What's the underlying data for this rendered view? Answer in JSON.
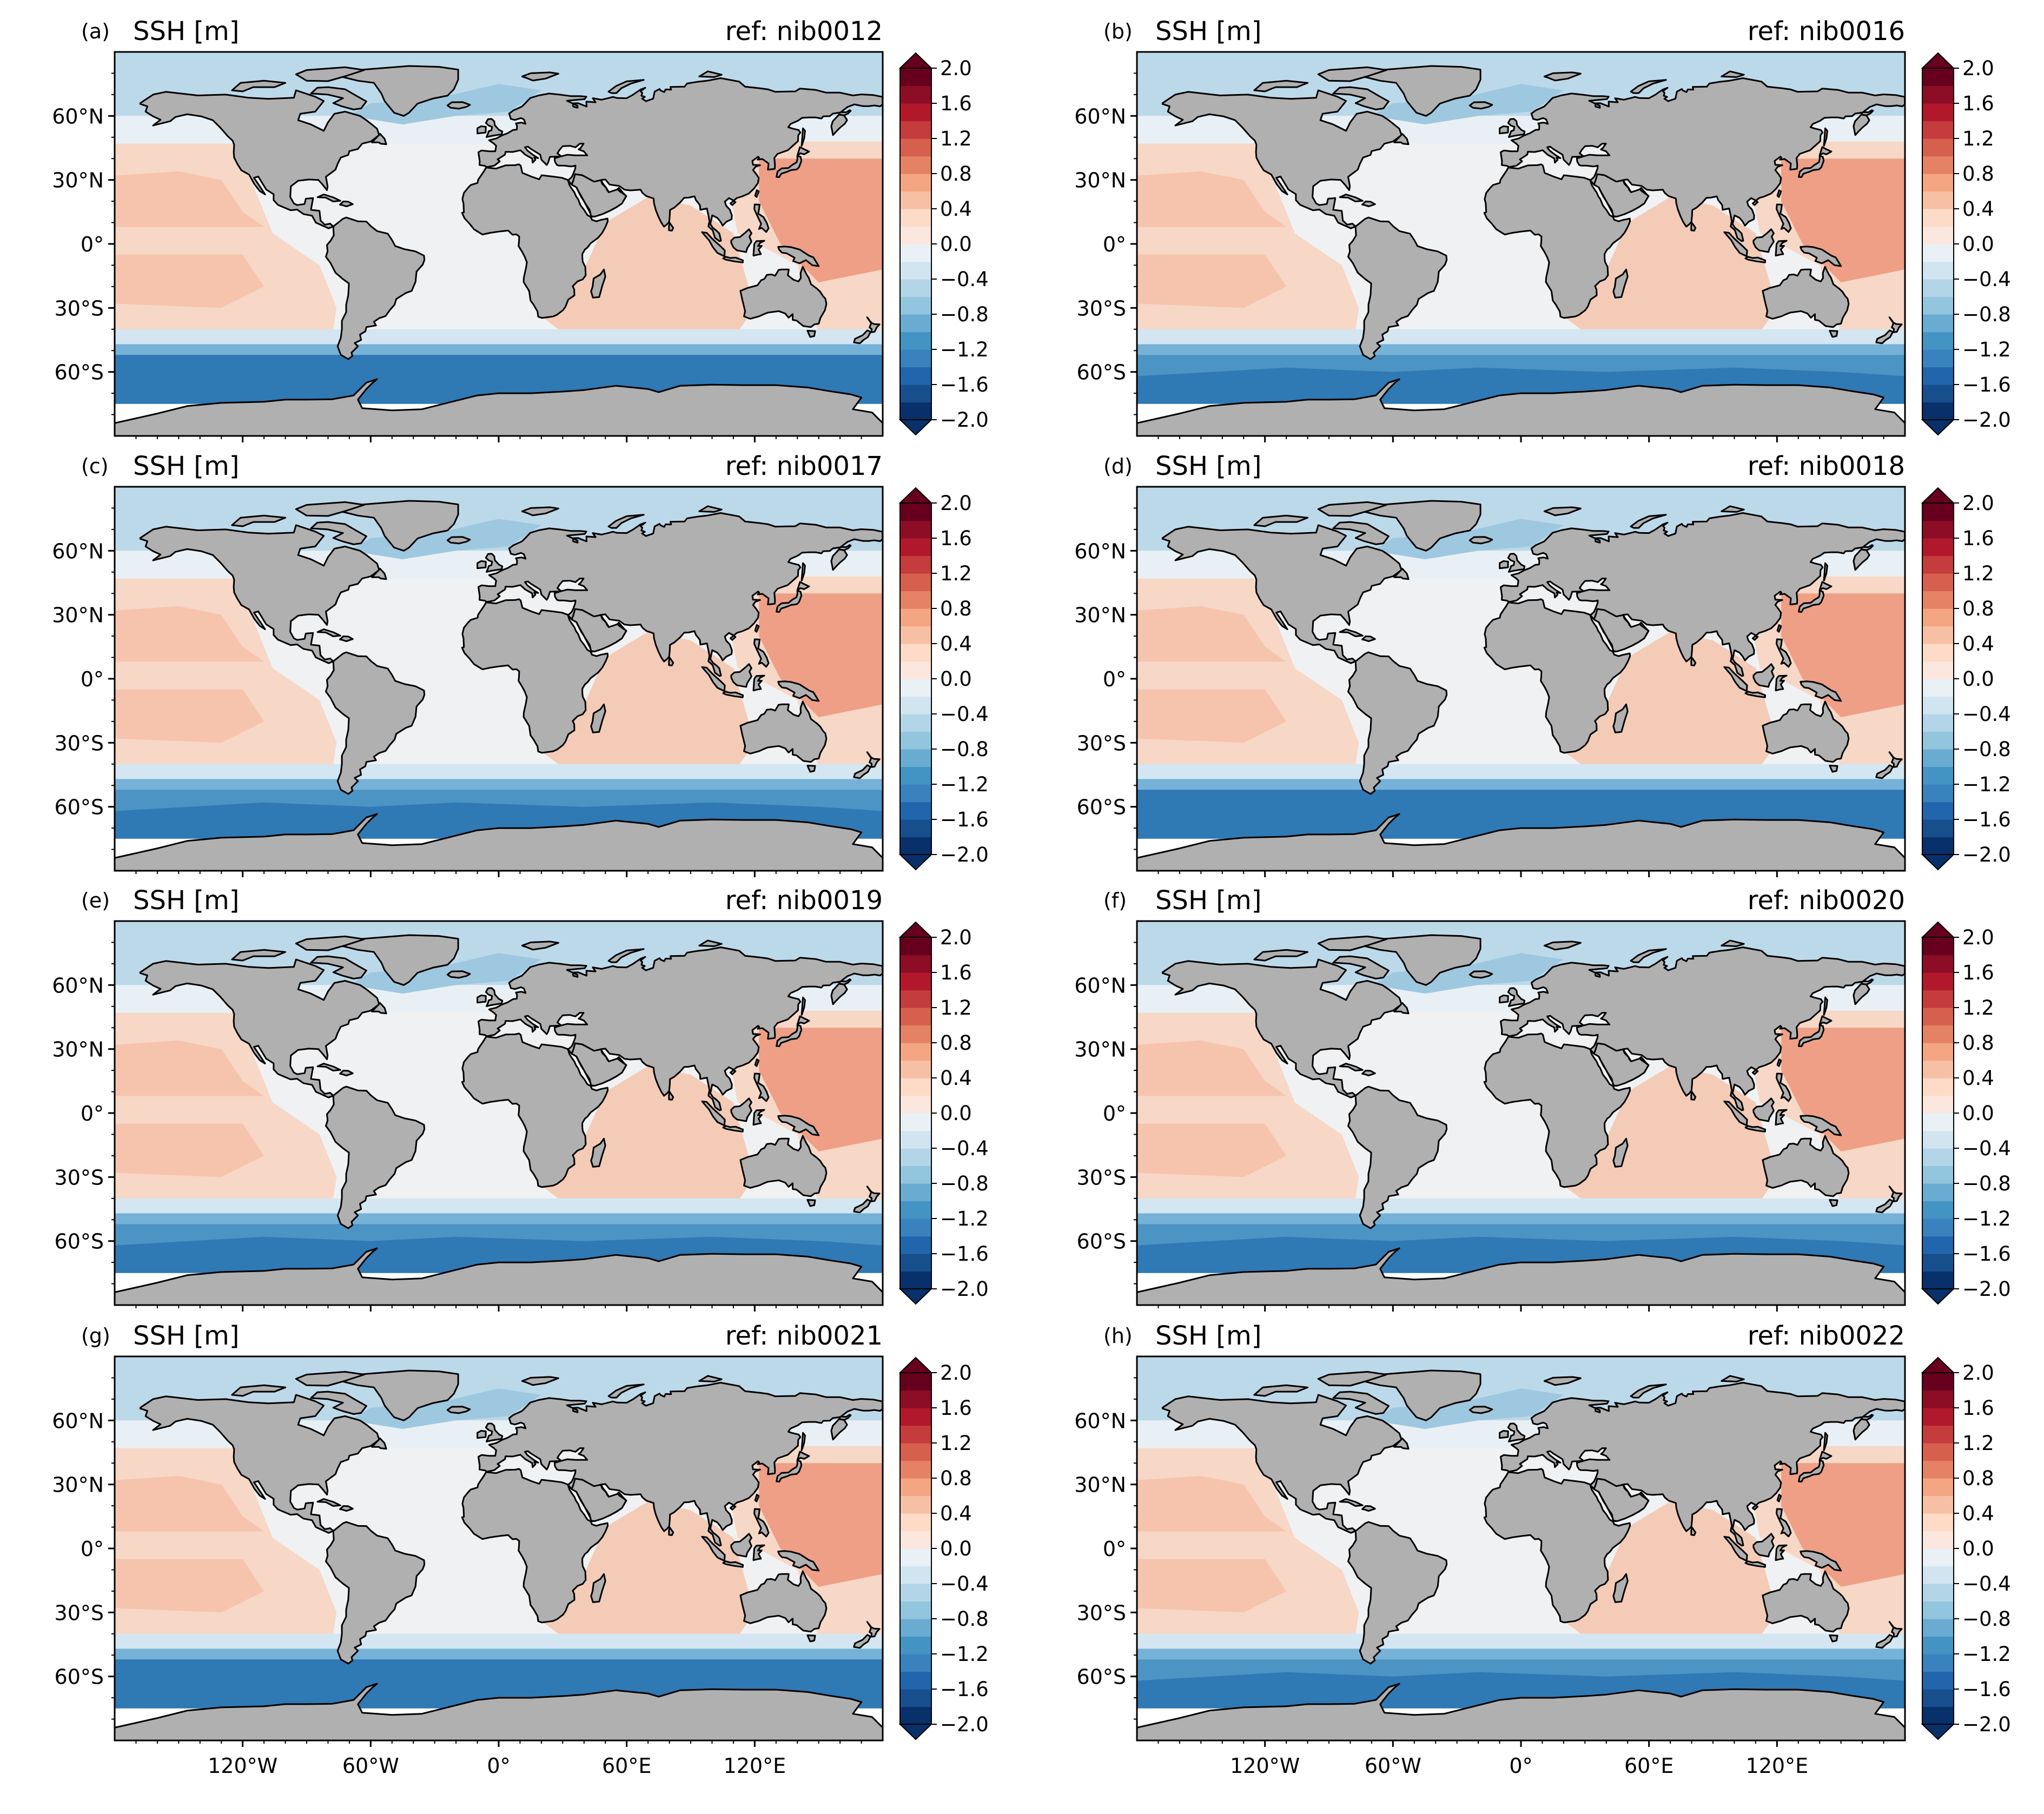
{
  "figure": {
    "panel_title": "SSH [m]",
    "lat_ticks": [
      "60°N",
      "30°N",
      "0°",
      "30°S",
      "60°S"
    ],
    "lon_ticks": [
      "120°W",
      "60°W",
      "0°",
      "60°E",
      "120°E"
    ],
    "colorbar_ticks": [
      "2.0",
      "1.6",
      "1.2",
      "0.8",
      "0.4",
      "0.0",
      "−0.4",
      "−0.8",
      "−1.2",
      "−1.6",
      "−2.0"
    ],
    "ocean_colors": {
      "arctic": "#bcd9ea",
      "subpolar": "#9ec8e0",
      "north_atlantic": "#e9f0f5",
      "atlantic_tropics": "#f0f1f3",
      "pacific_subtropics": "#f7d7c6",
      "pacific_band": "#f6c4ad",
      "west_pacific": "#ee9f85",
      "indian": "#f4cbb6",
      "southern_transition": "#d3e6f1",
      "acc_light": "#76b2d7",
      "acc": "#4b94c4",
      "acc_dark": "#2f79b5",
      "land": "#b0b0b0"
    },
    "colorbar_colors": [
      "#08306b",
      "#164f8c",
      "#2166ac",
      "#3a82bd",
      "#4393c3",
      "#6aabd2",
      "#92c5de",
      "#b3d5e8",
      "#d1e5f0",
      "#e9f1f6",
      "#fbe7dd",
      "#fddbc7",
      "#f7c0a4",
      "#f4a582",
      "#e58264",
      "#d6604d",
      "#c43c3c",
      "#b2182b",
      "#8c0d25",
      "#67001f"
    ]
  },
  "panels": [
    {
      "letter": "(a)",
      "ref": "ref: nib0012"
    },
    {
      "letter": "(b)",
      "ref": "ref: nib0016"
    },
    {
      "letter": "(c)",
      "ref": "ref: nib0017"
    },
    {
      "letter": "(d)",
      "ref": "ref: nib0018"
    },
    {
      "letter": "(e)",
      "ref": "ref: nib0019"
    },
    {
      "letter": "(f)",
      "ref": "ref: nib0020"
    },
    {
      "letter": "(g)",
      "ref": "ref: nib0021"
    },
    {
      "letter": "(h)",
      "ref": "ref: nib0022"
    }
  ],
  "chart_data": [
    {
      "type": "heatmap",
      "title": "SSH [m]",
      "subtitle": "ref: nib0012",
      "colorbar_range": [
        -2.0,
        2.0
      ],
      "colorbar_levels": 20,
      "colormap": "RdBu_r"
    },
    {
      "type": "heatmap",
      "title": "SSH [m]",
      "subtitle": "ref: nib0016",
      "colorbar_range": [
        -2.0,
        2.0
      ],
      "colorbar_levels": 20,
      "colormap": "RdBu_r"
    },
    {
      "type": "heatmap",
      "title": "SSH [m]",
      "subtitle": "ref: nib0017",
      "colorbar_range": [
        -2.0,
        2.0
      ],
      "colorbar_levels": 20,
      "colormap": "RdBu_r"
    },
    {
      "type": "heatmap",
      "title": "SSH [m]",
      "subtitle": "ref: nib0018",
      "colorbar_range": [
        -2.0,
        2.0
      ],
      "colorbar_levels": 20,
      "colormap": "RdBu_r"
    },
    {
      "type": "heatmap",
      "title": "SSH [m]",
      "subtitle": "ref: nib0019",
      "colorbar_range": [
        -2.0,
        2.0
      ],
      "colorbar_levels": 20,
      "colormap": "RdBu_r"
    },
    {
      "type": "heatmap",
      "title": "SSH [m]",
      "subtitle": "ref: nib0020",
      "colorbar_range": [
        -2.0,
        2.0
      ],
      "colorbar_levels": 20,
      "colormap": "RdBu_r"
    },
    {
      "type": "heatmap",
      "title": "SSH [m]",
      "subtitle": "ref: nib0021",
      "colorbar_range": [
        -2.0,
        2.0
      ],
      "colorbar_levels": 20,
      "colormap": "RdBu_r"
    },
    {
      "type": "heatmap",
      "title": "SSH [m]",
      "subtitle": "ref: nib0022",
      "colorbar_range": [
        -2.0,
        2.0
      ],
      "colorbar_levels": 20,
      "colormap": "RdBu_r"
    }
  ]
}
